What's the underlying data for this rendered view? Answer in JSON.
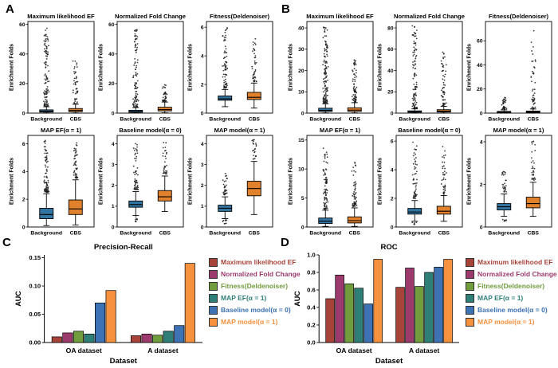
{
  "panels": {
    "a": "A",
    "b": "B",
    "c": "C",
    "d": "D"
  },
  "colors": {
    "background_box": "#3274a1",
    "cbs_box": "#e1812c",
    "axis": "#000000"
  },
  "legend": {
    "items": [
      {
        "label": "Maximum likelihood EF",
        "color": "#a8433a"
      },
      {
        "label": "Normalized Fold Change",
        "color": "#9c3a6e"
      },
      {
        "label": "Fitness(Deldenoiser)",
        "color": "#729d3f"
      },
      {
        "label": "MAP EF(α = 1)",
        "color": "#2f7f79"
      },
      {
        "label": "Baseline model(α = 0)",
        "color": "#3d72b4"
      },
      {
        "label": "MAP model(α = 1)",
        "color": "#f6913e"
      }
    ]
  },
  "chart_data": [
    {
      "id": "A1",
      "panel": "A",
      "type": "box",
      "title": "Maximum likelihood EF",
      "ylabel": "Enrichment Folds",
      "categories": [
        "Background",
        "CBS"
      ],
      "ylim": [
        0,
        62
      ],
      "yticks": [
        0,
        20,
        40,
        60
      ],
      "boxes": [
        {
          "category": "Background",
          "color": "#3274a1",
          "whislo": 0.1,
          "q1": 0.7,
          "med": 1.2,
          "q3": 2.2,
          "whishi": 4.3,
          "outliers_high": {
            "n": 110,
            "min": 4.6,
            "max": 58
          }
        },
        {
          "category": "CBS",
          "color": "#e1812c",
          "whislo": 0.1,
          "q1": 1.0,
          "med": 1.8,
          "q3": 3.1,
          "whishi": 6.0,
          "outliers_high": {
            "n": 45,
            "min": 6.4,
            "max": 38
          }
        }
      ]
    },
    {
      "id": "A2",
      "panel": "A",
      "type": "box",
      "title": "Normalized Fold Change",
      "ylabel": "Enrichment Folds",
      "categories": [
        "Background",
        "CBS"
      ],
      "ylim": [
        0,
        62
      ],
      "yticks": [
        0,
        20,
        40,
        60
      ],
      "boxes": [
        {
          "category": "Background",
          "color": "#3274a1",
          "whislo": 0.1,
          "q1": 0.6,
          "med": 1.0,
          "q3": 1.9,
          "whishi": 3.8,
          "outliers_high": {
            "n": 95,
            "min": 4.1,
            "max": 57
          }
        },
        {
          "category": "CBS",
          "color": "#e1812c",
          "whislo": 0.2,
          "q1": 1.5,
          "med": 2.4,
          "q3": 4.0,
          "whishi": 7.5,
          "outliers_high": {
            "n": 35,
            "min": 8,
            "max": 21
          }
        }
      ]
    },
    {
      "id": "A3",
      "panel": "A",
      "type": "box",
      "title": "Fitness(Deldenoiser)",
      "ylabel": "Enrichment Folds",
      "categories": [
        "Background",
        "CBS"
      ],
      "ylim": [
        0,
        6.4
      ],
      "yticks": [
        0,
        2,
        4,
        6
      ],
      "boxes": [
        {
          "category": "Background",
          "color": "#3274a1",
          "whislo": 0.45,
          "q1": 0.9,
          "med": 1.0,
          "q3": 1.2,
          "whishi": 1.65,
          "outliers_high": {
            "n": 70,
            "min": 1.75,
            "max": 6.1
          }
        },
        {
          "category": "CBS",
          "color": "#e1812c",
          "whislo": 0.35,
          "q1": 0.95,
          "med": 1.1,
          "q3": 1.45,
          "whishi": 2.1,
          "outliers_high": {
            "n": 40,
            "min": 2.2,
            "max": 5.2
          }
        }
      ]
    },
    {
      "id": "A4",
      "panel": "A",
      "type": "box",
      "title": "MAP EF(α = 1)",
      "ylabel": "Enrichment Folds",
      "categories": [
        "Background",
        "CBS"
      ],
      "ylim": [
        0,
        6.6
      ],
      "yticks": [
        0,
        2,
        4,
        6
      ],
      "boxes": [
        {
          "category": "Background",
          "color": "#3274a1",
          "whislo": 0.1,
          "q1": 0.6,
          "med": 0.9,
          "q3": 1.35,
          "whishi": 2.4,
          "outliers_high": {
            "n": 80,
            "min": 2.5,
            "max": 6.3
          }
        },
        {
          "category": "CBS",
          "color": "#e1812c",
          "whislo": 0.15,
          "q1": 0.9,
          "med": 1.3,
          "q3": 1.95,
          "whishi": 3.4,
          "outliers_high": {
            "n": 45,
            "min": 3.5,
            "max": 6.4
          }
        }
      ]
    },
    {
      "id": "A5",
      "panel": "A",
      "type": "box",
      "title": "Baseline model(α = 0)",
      "ylabel": "Enrichment Folds",
      "categories": [
        "Background",
        "CBS"
      ],
      "ylim": [
        0,
        4.4
      ],
      "yticks": [
        0,
        1,
        2,
        3,
        4
      ],
      "boxes": [
        {
          "category": "Background",
          "color": "#3274a1",
          "whislo": 0.55,
          "q1": 0.95,
          "med": 1.08,
          "q3": 1.25,
          "whishi": 1.7,
          "outliers_high": {
            "n": 55,
            "min": 1.8,
            "max": 4.1
          },
          "outliers_low": {
            "n": 8,
            "min": 0.25,
            "max": 0.5
          }
        },
        {
          "category": "CBS",
          "color": "#e1812c",
          "whislo": 0.75,
          "q1": 1.25,
          "med": 1.45,
          "q3": 1.75,
          "whishi": 2.45,
          "outliers_high": {
            "n": 30,
            "min": 2.55,
            "max": 4.3
          }
        }
      ]
    },
    {
      "id": "A6",
      "panel": "A",
      "type": "box",
      "title": "MAP model(α = 1)",
      "ylabel": "Enrichment Folds",
      "categories": [
        "Background",
        "CBS"
      ],
      "ylim": [
        0,
        4.4
      ],
      "yticks": [
        0,
        1,
        2,
        3,
        4
      ],
      "boxes": [
        {
          "category": "Background",
          "color": "#3274a1",
          "whislo": 0.4,
          "q1": 0.75,
          "med": 0.9,
          "q3": 1.05,
          "whishi": 1.45,
          "outliers_high": {
            "n": 30,
            "min": 1.55,
            "max": 2.6
          },
          "outliers_low": {
            "n": 8,
            "min": 0.1,
            "max": 0.35
          }
        },
        {
          "category": "CBS",
          "color": "#e1812c",
          "whislo": 0.6,
          "q1": 1.5,
          "med": 1.85,
          "q3": 2.2,
          "whishi": 3.15,
          "outliers_high": {
            "n": 22,
            "min": 3.25,
            "max": 4.2
          }
        }
      ]
    },
    {
      "id": "B1",
      "panel": "B",
      "type": "box",
      "title": "Maximum likelihood EF",
      "ylabel": "Enrichment Folds",
      "categories": [
        "Background",
        "CBS"
      ],
      "ylim": [
        0,
        43
      ],
      "yticks": [
        0,
        10,
        20,
        30,
        40
      ],
      "boxes": [
        {
          "category": "Background",
          "color": "#3274a1",
          "whislo": 0.1,
          "q1": 0.8,
          "med": 1.3,
          "q3": 2.3,
          "whishi": 4.4,
          "outliers_high": {
            "n": 130,
            "min": 4.7,
            "max": 41
          }
        },
        {
          "category": "CBS",
          "color": "#e1812c",
          "whislo": 0.1,
          "q1": 0.8,
          "med": 1.4,
          "q3": 2.5,
          "whishi": 4.9,
          "outliers_high": {
            "n": 70,
            "min": 5.2,
            "max": 26
          }
        }
      ]
    },
    {
      "id": "B2",
      "panel": "B",
      "type": "box",
      "title": "Normalized Fold Change",
      "ylabel": "Enrichment Folds",
      "categories": [
        "Background",
        "CBS"
      ],
      "ylim": [
        0,
        86
      ],
      "yticks": [
        0,
        20,
        40,
        60,
        80
      ],
      "boxes": [
        {
          "category": "Background",
          "color": "#3274a1",
          "whislo": 0.1,
          "q1": 0.8,
          "med": 1.2,
          "q3": 2.1,
          "whishi": 4.0,
          "outliers_high": {
            "n": 100,
            "min": 4.5,
            "max": 82
          }
        },
        {
          "category": "CBS",
          "color": "#e1812c",
          "whislo": 0.1,
          "q1": 1.0,
          "med": 1.8,
          "q3": 3.2,
          "whishi": 6.4,
          "outliers_high": {
            "n": 55,
            "min": 7,
            "max": 58
          }
        }
      ]
    },
    {
      "id": "B3",
      "panel": "B",
      "type": "box",
      "title": "Fitness(Deldenoiser)",
      "ylabel": "Enrichment Folds",
      "categories": [
        "Background",
        "CBS"
      ],
      "ylim": [
        0,
        76
      ],
      "yticks": [
        0,
        20,
        40,
        60
      ],
      "boxes": [
        {
          "category": "Background",
          "color": "#3274a1",
          "whislo": 0.1,
          "q1": 0.5,
          "med": 0.9,
          "q3": 1.4,
          "whishi": 2.7,
          "outliers_high": {
            "n": 35,
            "min": 3.2,
            "max": 13
          }
        },
        {
          "category": "CBS",
          "color": "#e1812c",
          "whislo": 0.1,
          "q1": 0.5,
          "med": 1.0,
          "q3": 1.7,
          "whishi": 3.4,
          "outliers_high": {
            "n": 45,
            "min": 4,
            "max": 71
          }
        }
      ]
    },
    {
      "id": "B4",
      "panel": "B",
      "type": "box",
      "title": "MAP EF(α = 1)",
      "ylabel": "Enrichment Folds",
      "categories": [
        "Background",
        "CBS"
      ],
      "ylim": [
        0,
        15.8
      ],
      "yticks": [
        0,
        5,
        10,
        15
      ],
      "boxes": [
        {
          "category": "Background",
          "color": "#3274a1",
          "whislo": 0.1,
          "q1": 0.6,
          "med": 1.0,
          "q3": 1.55,
          "whishi": 2.9,
          "outliers_high": {
            "n": 85,
            "min": 3.1,
            "max": 13.6
          }
        },
        {
          "category": "CBS",
          "color": "#e1812c",
          "whislo": 0.1,
          "q1": 0.7,
          "med": 1.1,
          "q3": 1.75,
          "whishi": 3.3,
          "outliers_high": {
            "n": 55,
            "min": 3.5,
            "max": 11.2
          }
        }
      ]
    },
    {
      "id": "B5",
      "panel": "B",
      "type": "box",
      "title": "Baseline model(α = 0)",
      "ylabel": "Enrichment Folds",
      "categories": [
        "Background",
        "CBS"
      ],
      "ylim": [
        0,
        6.4
      ],
      "yticks": [
        0,
        2,
        4,
        6
      ],
      "boxes": [
        {
          "category": "Background",
          "color": "#3274a1",
          "whislo": 0.4,
          "q1": 0.9,
          "med": 1.05,
          "q3": 1.3,
          "whishi": 1.85,
          "outliers_high": {
            "n": 55,
            "min": 2,
            "max": 6.1
          },
          "outliers_low": {
            "n": 6,
            "min": 0.15,
            "max": 0.35
          }
        },
        {
          "category": "CBS",
          "color": "#e1812c",
          "whislo": 0.4,
          "q1": 0.9,
          "med": 1.1,
          "q3": 1.45,
          "whishi": 2.2,
          "outliers_high": {
            "n": 40,
            "min": 2.3,
            "max": 5.7
          }
        }
      ]
    },
    {
      "id": "B6",
      "panel": "B",
      "type": "box",
      "title": "MAP model(α = 1)",
      "ylabel": "Enrichment Folds",
      "categories": [
        "Background",
        "CBS"
      ],
      "ylim": [
        0,
        4.3
      ],
      "yticks": [
        0,
        2,
        4
      ],
      "boxes": [
        {
          "category": "Background",
          "color": "#3274a1",
          "whislo": 0.5,
          "q1": 0.8,
          "med": 0.95,
          "q3": 1.1,
          "whishi": 1.55,
          "outliers_high": {
            "n": 28,
            "min": 1.65,
            "max": 2.6
          },
          "outliers_low": {
            "n": 6,
            "min": 0.2,
            "max": 0.45
          }
        },
        {
          "category": "CBS",
          "color": "#e1812c",
          "whislo": 0.5,
          "q1": 0.9,
          "med": 1.1,
          "q3": 1.4,
          "whishi": 2.1,
          "outliers_high": {
            "n": 30,
            "min": 2.2,
            "max": 4.1
          }
        }
      ]
    },
    {
      "id": "C",
      "panel": "C",
      "type": "bar",
      "title": "Precision-Recall",
      "ylabel": "AUC",
      "xlabel": "Dataset",
      "categories": [
        "OA dataset",
        "A dataset"
      ],
      "ylim": [
        0,
        0.155
      ],
      "yticks": [
        0,
        0.05,
        0.1,
        0.15
      ],
      "ytick_labels": [
        "0.00",
        "0.05",
        "0.10",
        "0.15"
      ],
      "series": [
        {
          "name": "Maximum likelihood EF",
          "color": "#a8433a",
          "values": [
            0.01,
            0.012
          ]
        },
        {
          "name": "Normalized Fold Change",
          "color": "#9c3a6e",
          "values": [
            0.017,
            0.015
          ]
        },
        {
          "name": "Fitness(Deldenoiser)",
          "color": "#729d3f",
          "values": [
            0.02,
            0.013
          ]
        },
        {
          "name": "MAP EF(α = 1)",
          "color": "#2f7f79",
          "values": [
            0.015,
            0.02
          ]
        },
        {
          "name": "Baseline model(α = 0)",
          "color": "#3d72b4",
          "values": [
            0.07,
            0.03
          ]
        },
        {
          "name": "MAP model(α = 1)",
          "color": "#f6913e",
          "values": [
            0.092,
            0.14
          ]
        }
      ]
    },
    {
      "id": "D",
      "panel": "D",
      "type": "bar",
      "title": "ROC",
      "ylabel": "AUC",
      "xlabel": "Dataset",
      "categories": [
        "OA dataset",
        "A dataset"
      ],
      "ylim": [
        0,
        1.0
      ],
      "yticks": [
        0,
        0.2,
        0.4,
        0.6,
        0.8,
        1.0
      ],
      "ytick_labels": [
        "0.0",
        "0.2",
        "0.4",
        "0.6",
        "0.8",
        "1.0"
      ],
      "series": [
        {
          "name": "Maximum likelihood EF",
          "color": "#a8433a",
          "values": [
            0.5,
            0.63
          ]
        },
        {
          "name": "Normalized Fold Change",
          "color": "#9c3a6e",
          "values": [
            0.77,
            0.85
          ]
        },
        {
          "name": "Fitness(Deldenoiser)",
          "color": "#729d3f",
          "values": [
            0.67,
            0.64
          ]
        },
        {
          "name": "MAP EF(α = 1)",
          "color": "#2f7f79",
          "values": [
            0.62,
            0.8
          ]
        },
        {
          "name": "Baseline model(α = 0)",
          "color": "#3d72b4",
          "values": [
            0.44,
            0.86
          ]
        },
        {
          "name": "MAP model(α = 1)",
          "color": "#f6913e",
          "values": [
            0.95,
            0.95
          ]
        }
      ]
    }
  ]
}
